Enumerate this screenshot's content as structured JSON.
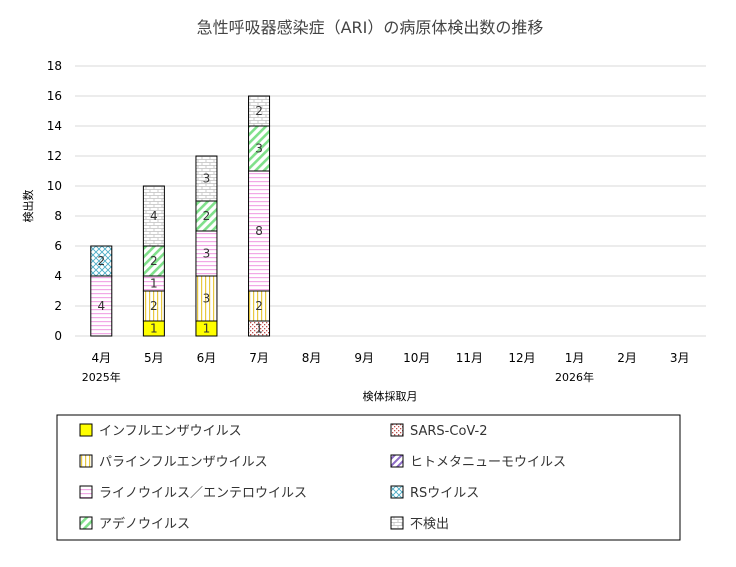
{
  "chart_data": {
    "type": "bar",
    "stacked": true,
    "title": "急性呼吸器感染症（ARI）の病原体検出数の推移",
    "xlabel": "検体採取月",
    "ylabel": "検出数",
    "ylim": [
      0,
      18
    ],
    "yticks": [
      0,
      2,
      4,
      6,
      8,
      10,
      12,
      14,
      16,
      18
    ],
    "grid": true,
    "legend_position": "bottom",
    "categories": [
      "4月",
      "5月",
      "6月",
      "7月",
      "8月",
      "9月",
      "10月",
      "11月",
      "12月",
      "1月",
      "2月",
      "3月"
    ],
    "year_labels": [
      {
        "category_index": 0,
        "label": "2025年"
      },
      {
        "category_index": 9,
        "label": "2026年"
      }
    ],
    "series": [
      {
        "name": "インフルエンザウイルス",
        "pattern": "solid-yellow",
        "values": [
          0,
          1,
          1,
          0,
          null,
          null,
          null,
          null,
          null,
          null,
          null,
          null
        ]
      },
      {
        "name": "SARS-CoV-2",
        "pattern": "dots-red",
        "values": [
          0,
          0,
          0,
          1,
          null,
          null,
          null,
          null,
          null,
          null,
          null,
          null
        ]
      },
      {
        "name": "パラインフルエンザウイルス",
        "pattern": "vertical-yellow",
        "values": [
          0,
          2,
          3,
          2,
          null,
          null,
          null,
          null,
          null,
          null,
          null,
          null
        ]
      },
      {
        "name": "ヒトメタニューモウイルス",
        "pattern": "diagonal-purple",
        "values": [
          0,
          0,
          0,
          0,
          null,
          null,
          null,
          null,
          null,
          null,
          null,
          null
        ]
      },
      {
        "name": "ライノウイルス／エンテロウイルス",
        "pattern": "horizontal-pink",
        "values": [
          4,
          1,
          3,
          8,
          null,
          null,
          null,
          null,
          null,
          null,
          null,
          null
        ]
      },
      {
        "name": "RSウイルス",
        "pattern": "crosshatch-blue",
        "values": [
          2,
          0,
          0,
          0,
          null,
          null,
          null,
          null,
          null,
          null,
          null,
          null
        ]
      },
      {
        "name": "アデノウイルス",
        "pattern": "diagonal-green",
        "values": [
          0,
          2,
          2,
          3,
          null,
          null,
          null,
          null,
          null,
          null,
          null,
          null
        ]
      },
      {
        "name": "不検出",
        "pattern": "brick-gray",
        "values": [
          0,
          4,
          3,
          2,
          null,
          null,
          null,
          null,
          null,
          null,
          null,
          null
        ]
      }
    ]
  }
}
